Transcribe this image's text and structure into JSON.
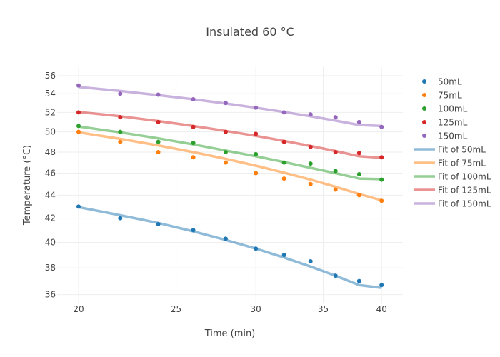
{
  "chart_data": {
    "type": "scatter",
    "title": "Insulated 60 °C",
    "xlabel": "Time (min)",
    "ylabel": "Temperature (°C)",
    "xscale": "log",
    "yscale": "log",
    "xlim": [
      19.2,
      41.5
    ],
    "ylim": [
      35.6,
      56.6
    ],
    "xticks": [
      20,
      25,
      30,
      35,
      40
    ],
    "yticks": [
      36,
      38,
      40,
      42,
      44,
      46,
      48,
      50,
      52,
      54,
      56
    ],
    "grid": true,
    "legend_position": "right",
    "x": [
      20,
      22,
      24,
      26,
      28,
      30,
      32,
      34,
      36,
      38,
      40
    ],
    "series": [
      {
        "name": "50mL",
        "color": "#1f77b4",
        "values": [
          43.0,
          42.0,
          41.5,
          41.0,
          40.3,
          39.5,
          39.0,
          38.5,
          37.4,
          37.0,
          36.7
        ]
      },
      {
        "name": "75mL",
        "color": "#ff7f0e",
        "values": [
          50.0,
          49.0,
          48.0,
          47.5,
          47.0,
          46.0,
          45.5,
          45.0,
          44.5,
          44.0,
          43.5
        ]
      },
      {
        "name": "100mL",
        "color": "#2ca02c",
        "values": [
          50.6,
          50.0,
          49.0,
          48.9,
          48.0,
          47.8,
          47.0,
          46.9,
          46.2,
          45.9,
          45.4
        ]
      },
      {
        "name": "125mL",
        "color": "#d62728",
        "values": [
          52.0,
          51.5,
          51.0,
          50.5,
          50.0,
          49.8,
          49.0,
          48.5,
          48.0,
          47.9,
          47.5
        ]
      },
      {
        "name": "150mL",
        "color": "#9467bd",
        "values": [
          54.9,
          54.0,
          53.9,
          53.4,
          53.0,
          52.5,
          52.0,
          51.8,
          51.5,
          51.0,
          50.5
        ]
      }
    ],
    "fits": [
      {
        "name": "Fit of 50mL",
        "color": "#1f77b4",
        "values": [
          42.95,
          42.25,
          41.6,
          40.9,
          40.2,
          39.5,
          38.8,
          38.1,
          37.4,
          36.7,
          36.5
        ]
      },
      {
        "name": "Fit of 75mL",
        "color": "#ff7f0e",
        "values": [
          49.95,
          49.3,
          48.65,
          48.0,
          47.35,
          46.7,
          46.05,
          45.4,
          44.75,
          44.1,
          43.55
        ]
      },
      {
        "name": "Fit of 100mL",
        "color": "#2ca02c",
        "values": [
          50.55,
          49.95,
          49.35,
          48.75,
          48.15,
          47.6,
          47.05,
          46.5,
          46.0,
          45.5,
          45.45
        ]
      },
      {
        "name": "Fit of 125mL",
        "color": "#d62728",
        "values": [
          52.05,
          51.6,
          51.1,
          50.6,
          50.1,
          49.6,
          49.1,
          48.6,
          48.1,
          47.6,
          47.45
        ]
      },
      {
        "name": "Fit of 150mL",
        "color": "#9467bd",
        "values": [
          54.75,
          54.3,
          53.85,
          53.4,
          52.95,
          52.5,
          52.05,
          51.6,
          51.15,
          50.7,
          50.6
        ]
      }
    ]
  }
}
